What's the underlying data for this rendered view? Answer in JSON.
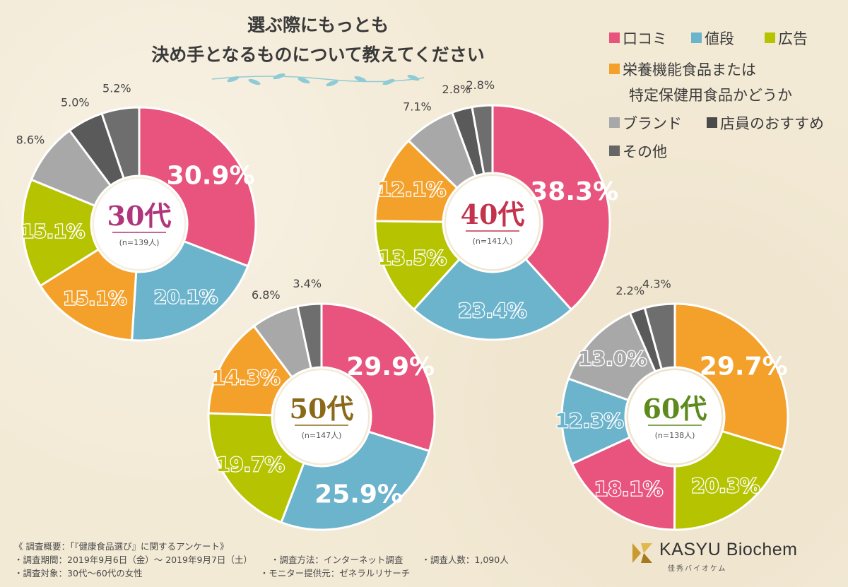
{
  "title": {
    "line1": "選ぶ際にもっとも",
    "line2": "決め手となるものについて教えてください"
  },
  "legend": [
    {
      "label": "口コミ",
      "color": "#e8547d"
    },
    {
      "label": "値段",
      "color": "#6cb3cc"
    },
    {
      "label": "広告",
      "color": "#b5c300"
    },
    {
      "label": "栄養機能食品または",
      "label2": "特定保健用食品かどうか",
      "color": "#f4a12c"
    },
    {
      "label": "ブランド",
      "color": "#a8a8a8"
    },
    {
      "label": "店員のおすすめ",
      "color": "#4a4a4a"
    },
    {
      "label": "その他",
      "color": "#666666"
    }
  ],
  "colors": {
    "口コミ": "#e8547d",
    "値段": "#6cb3cc",
    "広告": "#b5c300",
    "栄養機能": "#f4a12c",
    "ブランド": "#a8a8a8",
    "店員": "#5a5a5a",
    "その他": "#6e6e6e"
  },
  "chart_data": [
    {
      "type": "pie",
      "center_title": "30代",
      "center_n": "(n=139人)",
      "title_color": "#b0357a",
      "slices": [
        {
          "category": "口コミ",
          "value": 30.9,
          "label": "30.9%"
        },
        {
          "category": "値段",
          "value": 20.1,
          "label": "20.1%"
        },
        {
          "category": "栄養機能",
          "value": 15.1,
          "label": "15.1%"
        },
        {
          "category": "広告",
          "value": 15.1,
          "label": "15.1%"
        },
        {
          "category": "ブランド",
          "value": 8.6,
          "label": "8.6%"
        },
        {
          "category": "店員",
          "value": 5.0,
          "label": "5.0%"
        },
        {
          "category": "その他",
          "value": 5.2,
          "label": "5.2%"
        }
      ]
    },
    {
      "type": "pie",
      "center_title": "40代",
      "center_n": "(n=141人)",
      "title_color": "#c3334d",
      "slices": [
        {
          "category": "口コミ",
          "value": 38.3,
          "label": "38.3%"
        },
        {
          "category": "値段",
          "value": 23.4,
          "label": "23.4%"
        },
        {
          "category": "広告",
          "value": 13.5,
          "label": "13.5%"
        },
        {
          "category": "栄養機能",
          "value": 12.1,
          "label": "12.1%"
        },
        {
          "category": "ブランド",
          "value": 7.1,
          "label": "7.1%"
        },
        {
          "category": "店員",
          "value": 2.8,
          "label": "2.8%"
        },
        {
          "category": "その他",
          "value": 2.8,
          "label": "2.8%"
        }
      ]
    },
    {
      "type": "pie",
      "center_title": "50代",
      "center_n": "(n=147人)",
      "title_color": "#8a6a1a",
      "slices": [
        {
          "category": "口コミ",
          "value": 29.9,
          "label": "29.9%"
        },
        {
          "category": "値段",
          "value": 25.9,
          "label": "25.9%"
        },
        {
          "category": "広告",
          "value": 19.7,
          "label": "19.7%"
        },
        {
          "category": "栄養機能",
          "value": 14.3,
          "label": "14.3%"
        },
        {
          "category": "ブランド",
          "value": 6.8,
          "label": "6.8%"
        },
        {
          "category": "その他",
          "value": 3.4,
          "label": "3.4%"
        }
      ]
    },
    {
      "type": "pie",
      "center_title": "60代",
      "center_n": "(n=138人)",
      "title_color": "#5c8a1c",
      "slices": [
        {
          "category": "栄養機能",
          "value": 29.7,
          "label": "29.7%"
        },
        {
          "category": "広告",
          "value": 20.3,
          "label": "20.3%"
        },
        {
          "category": "口コミ",
          "value": 18.1,
          "label": "18.1%"
        },
        {
          "category": "値段",
          "value": 12.3,
          "label": "12.3%"
        },
        {
          "category": "ブランド",
          "value": 13.0,
          "label": "13.0%"
        },
        {
          "category": "店員",
          "value": 2.2,
          "label": "2.2%"
        },
        {
          "category": "その他",
          "value": 4.3,
          "label": "4.3%"
        }
      ]
    }
  ],
  "footer": {
    "heading": "《 調査概要：「『健康食品選び』に関するアンケート》",
    "period": "・調査期間：2019年9月6日（金）～ 2019年9月7日（土）",
    "method": "・調査方法：インターネット調査",
    "count": "・調査人数：1,090人",
    "target": "・調査対象：30代～60代の女性",
    "provider": "・モニター提供元：ゼネラルリサーチ"
  },
  "logo": {
    "name": "KASYU Biochem",
    "sub": "佳秀バイオケム"
  }
}
